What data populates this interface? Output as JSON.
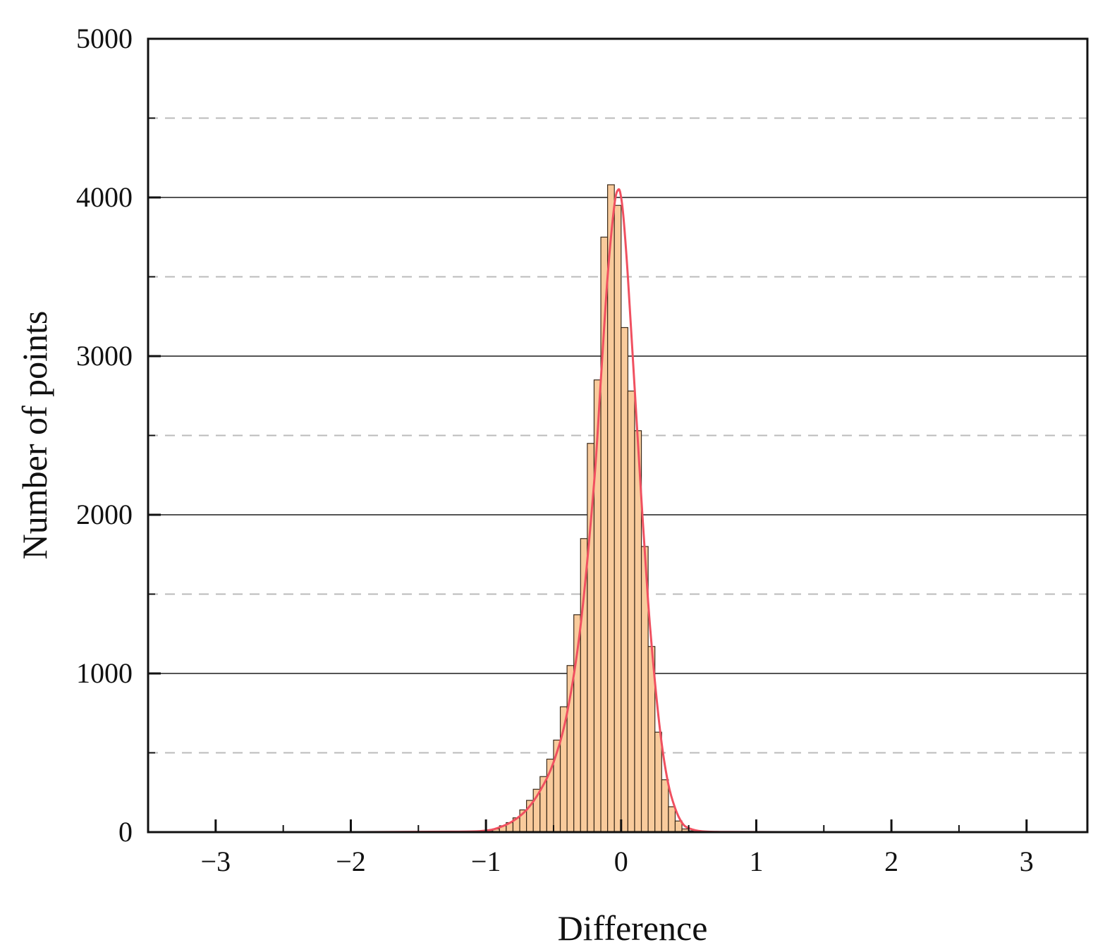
{
  "chart_data": {
    "type": "bar",
    "title": "",
    "xlabel": "Difference",
    "ylabel": "Number of points",
    "xlim": [
      -3.5,
      3.45
    ],
    "ylim": [
      0,
      5000
    ],
    "x_ticks": [
      "-3",
      "-2",
      "-1",
      "0",
      "1",
      "2",
      "3"
    ],
    "y_ticks": [
      "0",
      "1000",
      "2000",
      "3000",
      "4000",
      "5000"
    ],
    "grid": "horizontal: solid at 1000, 2000, 3000, 4000; dashed at 500, 1500, 2500, 3500, 4500",
    "legend": "none",
    "bin_width": 0.05,
    "bin_centers": [
      -0.975,
      -0.925,
      -0.875,
      -0.825,
      -0.775,
      -0.725,
      -0.675,
      -0.625,
      -0.575,
      -0.525,
      -0.475,
      -0.425,
      -0.375,
      -0.325,
      -0.275,
      -0.225,
      -0.175,
      -0.125,
      -0.075,
      -0.025,
      0.025,
      0.075,
      0.125,
      0.175,
      0.225,
      0.275,
      0.325,
      0.375,
      0.425,
      0.475,
      0.525,
      0.575
    ],
    "counts": [
      10,
      20,
      40,
      60,
      90,
      140,
      200,
      270,
      350,
      460,
      580,
      790,
      1050,
      1370,
      1850,
      2450,
      2850,
      3750,
      4080,
      3950,
      3180,
      2780,
      2530,
      1800,
      1170,
      630,
      330,
      160,
      70,
      20,
      8,
      3
    ],
    "fit_curve": {
      "x": [
        -3.5,
        -2.0,
        -1.2,
        -1.0,
        -0.9,
        -0.8,
        -0.7,
        -0.6,
        -0.5,
        -0.4,
        -0.3,
        -0.2,
        -0.15,
        -0.1,
        -0.05,
        -0.02,
        0.0,
        0.02,
        0.05,
        0.1,
        0.15,
        0.2,
        0.25,
        0.3,
        0.35,
        0.4,
        0.45,
        0.5,
        0.6,
        0.8,
        1.2,
        2.0,
        3.45
      ],
      "y": [
        0,
        0,
        3,
        10,
        30,
        70,
        140,
        260,
        440,
        750,
        1300,
        2200,
        2850,
        3500,
        3950,
        4050,
        4000,
        3850,
        3500,
        2800,
        2100,
        1450,
        950,
        560,
        300,
        150,
        60,
        25,
        5,
        1,
        0,
        0,
        0
      ]
    },
    "colors": {
      "bar_fill": "#f9cb9c",
      "bar_edge": "#3a2a1a",
      "fit_line": "#f05060",
      "grid_solid": "#555555",
      "grid_dashed": "#bbbbbb",
      "axis": "#111111"
    }
  }
}
